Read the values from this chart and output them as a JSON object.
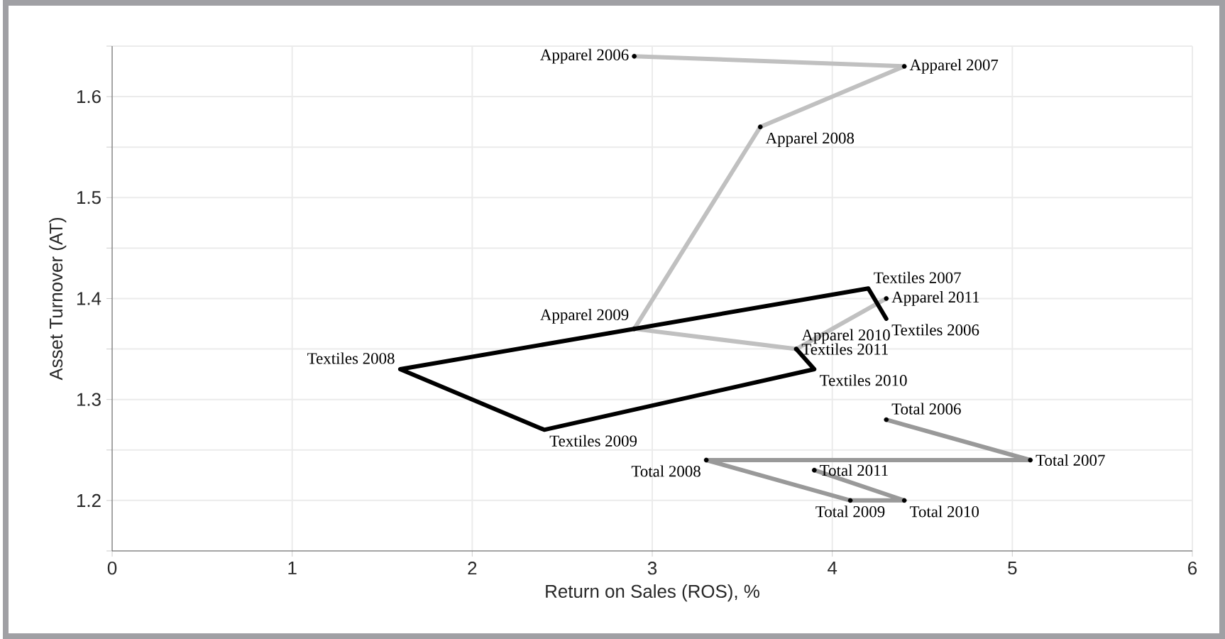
{
  "chart_data": {
    "type": "line",
    "xlabel": "Return on Sales (ROS), %",
    "ylabel": "Asset Turnover (AT)",
    "xlim": [
      0,
      6
    ],
    "ylim": [
      1.15,
      1.65
    ],
    "xticks": [
      0,
      1,
      2,
      3,
      4,
      5,
      6
    ],
    "yticks": [
      {
        "value": 1.15,
        "label": null
      },
      1.2,
      {
        "value": 1.25,
        "label": null
      },
      1.3,
      {
        "value": 1.35,
        "label": null
      },
      1.4,
      {
        "value": 1.45,
        "label": null
      },
      1.5,
      {
        "value": 1.55,
        "label": null
      },
      1.6,
      {
        "value": 1.65,
        "label": null
      }
    ],
    "grid": true,
    "series": [
      {
        "color": "#c0c0c0",
        "marker": "circle",
        "x": [
          2.9,
          4.4,
          3.6,
          2.9,
          3.8,
          4.3
        ],
        "values": [
          1.64,
          1.63,
          1.57,
          1.37,
          1.35,
          1.4
        ]
      },
      {
        "color": "#000000",
        "x": [
          4.3,
          4.2,
          1.6,
          2.4,
          3.9,
          3.8
        ],
        "values": [
          1.38,
          1.41,
          1.33,
          1.27,
          1.33,
          1.35
        ]
      },
      {
        "color": "#999999",
        "marker": "circle",
        "x": [
          4.3,
          5.1,
          3.3,
          4.1,
          4.4,
          3.9
        ],
        "values": [
          1.28,
          1.24,
          1.24,
          1.2,
          1.2,
          1.23
        ]
      }
    ],
    "annotations": [
      {
        "text": "Apparel 2006",
        "x": 2.9,
        "y": 1.64
      },
      {
        "text": "Apparel 2007",
        "x": 4.4,
        "y": 1.63
      },
      {
        "text": "Apparel 2008",
        "x": 3.6,
        "y": 1.57
      },
      {
        "text": "Apparel 2009",
        "x": 2.9,
        "y": 1.37
      },
      {
        "text": "Apparel 2010",
        "x": 3.8,
        "y": 1.35
      },
      {
        "text": "Apparel 2011",
        "x": 4.3,
        "y": 1.4
      },
      {
        "text": "Textiles 2006",
        "x": 4.3,
        "y": 1.38
      },
      {
        "text": "Textiles 2007",
        "x": 4.2,
        "y": 1.41
      },
      {
        "text": "Textiles 2008",
        "x": 1.6,
        "y": 1.33
      },
      {
        "text": "Textiles 2009",
        "x": 2.4,
        "y": 1.27
      },
      {
        "text": "Textiles 2010",
        "x": 3.9,
        "y": 1.33
      },
      {
        "text": "Textiles 2011",
        "x": 3.8,
        "y": 1.35
      },
      {
        "text": "Total 2006",
        "x": 4.3,
        "y": 1.28
      },
      {
        "text": "Total 2007",
        "x": 5.1,
        "y": 1.24
      },
      {
        "text": "Total 2008",
        "x": 3.3,
        "y": 1.24
      },
      {
        "text": "Total 2009",
        "x": 4.1,
        "y": 1.2
      },
      {
        "text": "Total 2010",
        "x": 4.4,
        "y": 1.2
      },
      {
        "text": "Total 2011",
        "x": 3.9,
        "y": 1.23
      }
    ]
  }
}
